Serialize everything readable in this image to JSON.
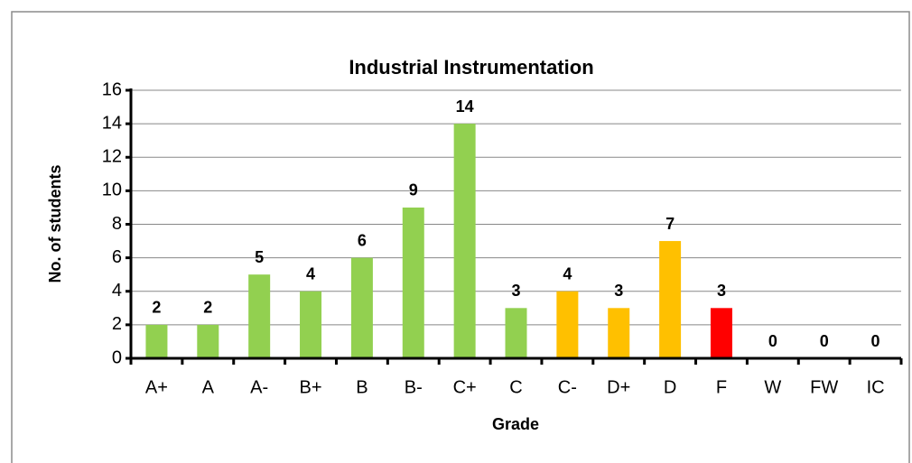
{
  "chart_data": {
    "type": "bar",
    "title": "Industrial Instrumentation",
    "xlabel": "Grade",
    "ylabel": "No. of students",
    "categories": [
      "A+",
      "A",
      "A-",
      "B+",
      "B",
      "B-",
      "C+",
      "C",
      "C-",
      "D+",
      "D",
      "F",
      "W",
      "FW",
      "IC"
    ],
    "values": [
      2,
      2,
      5,
      4,
      6,
      9,
      14,
      3,
      4,
      3,
      7,
      3,
      0,
      0,
      0
    ],
    "colors": [
      "#92d050",
      "#92d050",
      "#92d050",
      "#92d050",
      "#92d050",
      "#92d050",
      "#92d050",
      "#92d050",
      "#ffc000",
      "#ffc000",
      "#ffc000",
      "#ff0000",
      "#92d050",
      "#92d050",
      "#92d050"
    ],
    "ylim": [
      0,
      16
    ],
    "yticks": [
      0,
      2,
      4,
      6,
      8,
      10,
      12,
      14,
      16
    ],
    "grid": true
  }
}
